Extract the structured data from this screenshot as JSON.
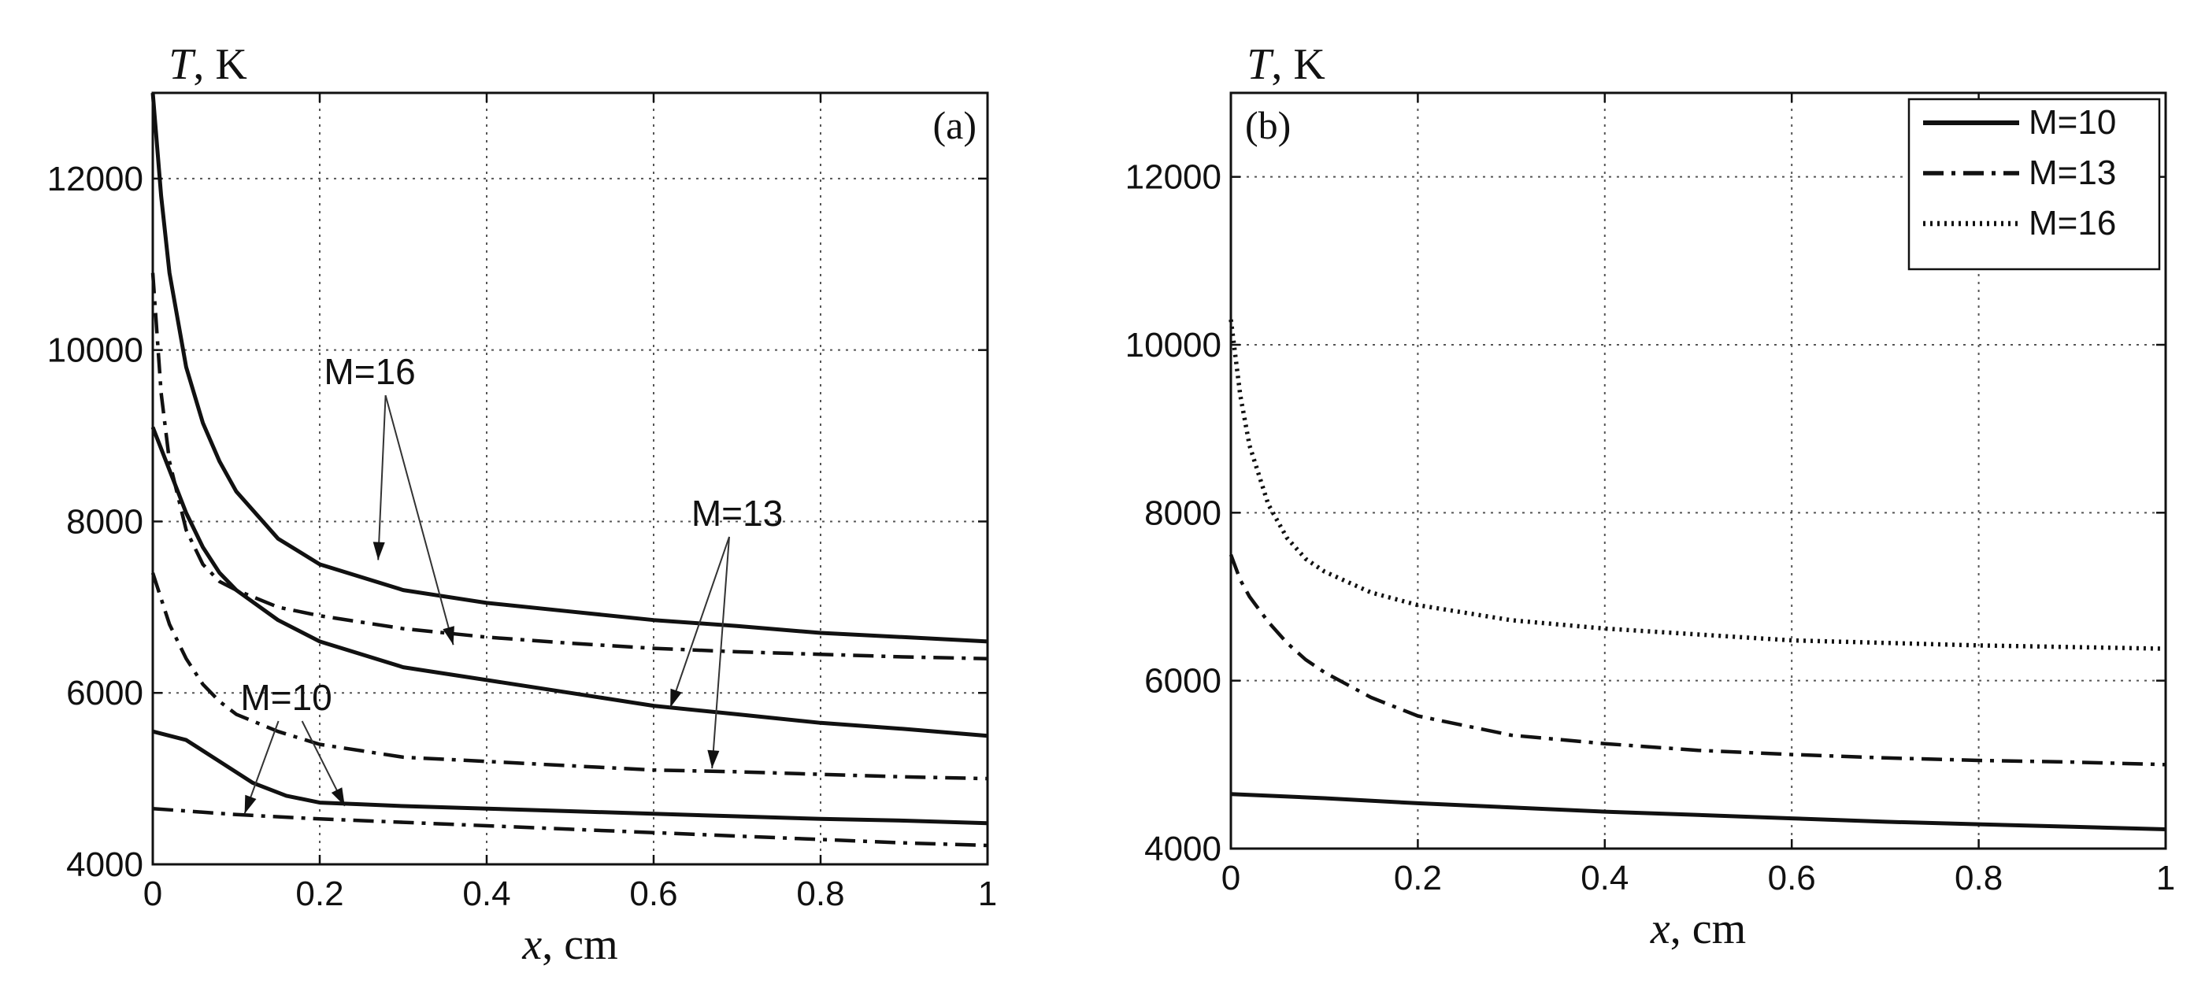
{
  "chart_data": [
    {
      "type": "line",
      "panel_label": "(a)",
      "ylabel": "T, K",
      "xlabel": "x, cm",
      "xlim": [
        0,
        1
      ],
      "ylim": [
        4000,
        13000
      ],
      "xticks": [
        0,
        0.2,
        0.4,
        0.6,
        0.8,
        1
      ],
      "xtick_labels": [
        "0",
        "0.2",
        "0.4",
        "0.6",
        "0.8",
        "1"
      ],
      "yticks": [
        4000,
        6000,
        8000,
        10000,
        12000
      ],
      "ytick_labels": [
        "4000",
        "6000",
        "8000",
        "10000",
        "12000"
      ],
      "grid": true,
      "series": [
        {
          "style": "solid",
          "x": [
            0,
            0.01,
            0.02,
            0.04,
            0.06,
            0.08,
            0.1,
            0.15,
            0.2,
            0.3,
            0.4,
            0.5,
            0.6,
            0.7,
            0.8,
            0.9,
            1.0
          ],
          "y": [
            13000,
            11800,
            10900,
            9800,
            9150,
            8700,
            8350,
            7800,
            7500,
            7200,
            7050,
            6950,
            6850,
            6780,
            6700,
            6650,
            6600
          ]
        },
        {
          "style": "dashdot",
          "x": [
            0,
            0.01,
            0.02,
            0.04,
            0.06,
            0.08,
            0.1,
            0.15,
            0.2,
            0.3,
            0.4,
            0.5,
            0.6,
            0.7,
            0.8,
            0.9,
            1.0
          ],
          "y": [
            10900,
            9500,
            8700,
            7900,
            7500,
            7300,
            7200,
            7000,
            6900,
            6750,
            6650,
            6580,
            6520,
            6480,
            6450,
            6420,
            6400
          ]
        },
        {
          "style": "solid",
          "x": [
            0,
            0.02,
            0.04,
            0.06,
            0.08,
            0.1,
            0.15,
            0.2,
            0.3,
            0.4,
            0.5,
            0.6,
            0.7,
            0.8,
            0.9,
            1.0
          ],
          "y": [
            9100,
            8600,
            8100,
            7700,
            7400,
            7200,
            6850,
            6600,
            6300,
            6150,
            6000,
            5850,
            5750,
            5650,
            5580,
            5500
          ]
        },
        {
          "style": "dashdot",
          "x": [
            0,
            0.02,
            0.04,
            0.06,
            0.08,
            0.1,
            0.15,
            0.2,
            0.3,
            0.4,
            0.5,
            0.6,
            0.7,
            0.8,
            0.9,
            1.0
          ],
          "y": [
            7400,
            6800,
            6400,
            6100,
            5900,
            5750,
            5550,
            5400,
            5250,
            5200,
            5150,
            5100,
            5080,
            5050,
            5020,
            5000
          ]
        },
        {
          "style": "solid",
          "x": [
            0,
            0.04,
            0.08,
            0.12,
            0.16,
            0.2,
            0.25,
            0.3,
            0.4,
            0.5,
            0.6,
            0.7,
            0.8,
            0.9,
            1.0
          ],
          "y": [
            5550,
            5450,
            5200,
            4950,
            4800,
            4720,
            4700,
            4680,
            4650,
            4620,
            4590,
            4560,
            4530,
            4510,
            4480
          ]
        },
        {
          "style": "dashdot",
          "x": [
            0,
            0.1,
            0.2,
            0.3,
            0.4,
            0.5,
            0.6,
            0.7,
            0.8,
            0.9,
            1.0
          ],
          "y": [
            4650,
            4580,
            4530,
            4490,
            4450,
            4410,
            4370,
            4330,
            4290,
            4250,
            4220
          ]
        }
      ],
      "annotations": [
        {
          "text": "M=16",
          "at": [
            0.26,
            9600
          ],
          "points_to": [
            [
              0.27,
              7550
            ],
            [
              0.36,
              6560
            ]
          ]
        },
        {
          "text": "M=13",
          "at": [
            0.7,
            7950
          ],
          "points_to": [
            [
              0.62,
              5830
            ],
            [
              0.67,
              5120
            ]
          ]
        },
        {
          "text": "M=10",
          "at": [
            0.16,
            5800
          ],
          "points_to": [
            [
              0.11,
              4590
            ],
            [
              0.23,
              4680
            ]
          ]
        }
      ]
    },
    {
      "type": "line",
      "panel_label": "(b)",
      "ylabel": "T, K",
      "xlabel": "x, cm",
      "xlim": [
        0,
        1
      ],
      "ylim": [
        4000,
        13000
      ],
      "xticks": [
        0,
        0.2,
        0.4,
        0.6,
        0.8,
        1
      ],
      "xtick_labels": [
        "0",
        "0.2",
        "0.4",
        "0.6",
        "0.8",
        "1"
      ],
      "yticks": [
        4000,
        6000,
        8000,
        10000,
        12000
      ],
      "ytick_labels": [
        "4000",
        "6000",
        "8000",
        "10000",
        "12000"
      ],
      "grid": true,
      "legend_position": "top-right",
      "series": [
        {
          "name": "M=10",
          "style": "solid",
          "x": [
            0,
            0.1,
            0.2,
            0.3,
            0.4,
            0.5,
            0.6,
            0.7,
            0.8,
            0.9,
            1.0
          ],
          "y": [
            4650,
            4600,
            4540,
            4490,
            4440,
            4400,
            4360,
            4320,
            4290,
            4260,
            4230
          ]
        },
        {
          "name": "M=13",
          "style": "dashdot",
          "x": [
            0,
            0.01,
            0.02,
            0.04,
            0.06,
            0.08,
            0.1,
            0.15,
            0.2,
            0.3,
            0.4,
            0.5,
            0.6,
            0.7,
            0.8,
            0.9,
            1.0
          ],
          "y": [
            7500,
            7200,
            7000,
            6700,
            6450,
            6250,
            6100,
            5800,
            5580,
            5350,
            5250,
            5170,
            5120,
            5080,
            5050,
            5030,
            5000
          ]
        },
        {
          "name": "M=16",
          "style": "dotted",
          "x": [
            0,
            0.01,
            0.02,
            0.04,
            0.06,
            0.08,
            0.1,
            0.15,
            0.2,
            0.3,
            0.4,
            0.5,
            0.6,
            0.7,
            0.8,
            0.9,
            1.0
          ],
          "y": [
            10300,
            9400,
            8800,
            8100,
            7700,
            7450,
            7300,
            7050,
            6900,
            6720,
            6620,
            6550,
            6480,
            6450,
            6420,
            6400,
            6380
          ]
        }
      ]
    }
  ]
}
